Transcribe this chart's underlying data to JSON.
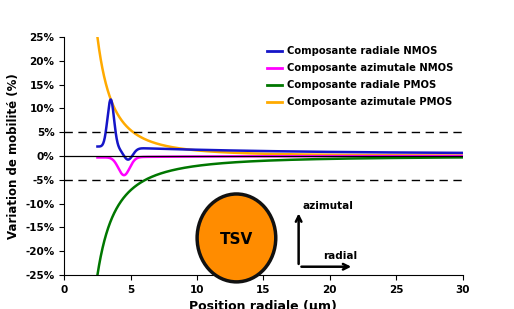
{
  "xlabel": "Position radiale (μm)",
  "ylabel": "Variation de mobilité (%)",
  "xlim": [
    0,
    30
  ],
  "ylim": [
    -0.25,
    0.25
  ],
  "yticks": [
    -0.25,
    -0.2,
    -0.15,
    -0.1,
    -0.05,
    0.0,
    0.05,
    0.1,
    0.15,
    0.2,
    0.25
  ],
  "ytick_labels": [
    "-25%",
    "-20%",
    "-15%",
    "-10%",
    "-5%",
    "0%",
    "5%",
    "10%",
    "15%",
    "20%",
    "25%"
  ],
  "xticks": [
    0,
    5,
    10,
    15,
    20,
    25,
    30
  ],
  "legend": [
    {
      "label": "Composante radiale NMOS",
      "color": "#1515c8"
    },
    {
      "label": "Composante azimutale NMOS",
      "color": "#ff00ff"
    },
    {
      "label": "Composante radiale PMOS",
      "color": "#007700"
    },
    {
      "label": "Composante azimutale PMOS",
      "color": "#ffaa00"
    }
  ],
  "dashed_lines": [
    0.05,
    -0.05
  ],
  "tsv_color": "#ff8c00",
  "tsv_edge_color": "#111111",
  "background_color": "#ffffff"
}
